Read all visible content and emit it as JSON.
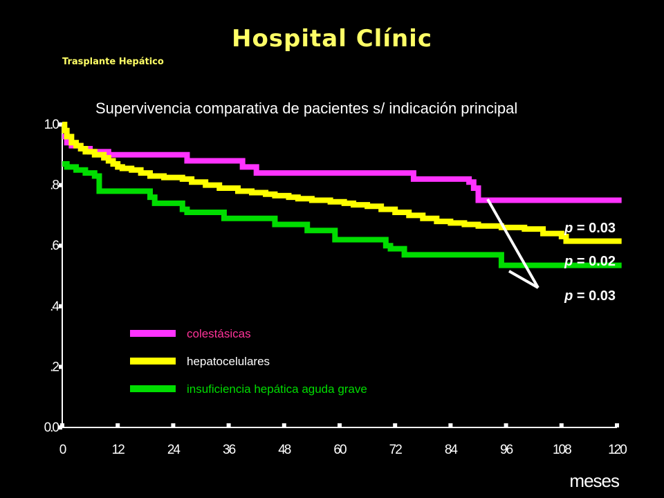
{
  "header": {
    "title": "Hospital Clínic",
    "subtitle": "Trasplante Hepático",
    "title_color": "#ffff66",
    "subtitle_color": "#ffff66"
  },
  "chart_data": {
    "type": "line",
    "title": "Supervivencia comparativa de pacientes s/ indicación principal",
    "xlabel": "meses",
    "ylabel": "",
    "xlim": [
      0,
      120
    ],
    "ylim": [
      0,
      1.0
    ],
    "x_ticks": [
      "0",
      "12",
      "24",
      "36",
      "48",
      "60",
      "72",
      "84",
      "96",
      "108",
      "120"
    ],
    "y_ticks": [
      "0.0",
      ".2",
      ".4",
      ".6",
      ".8",
      "1.0"
    ],
    "y_tick_values": [
      0,
      0.2,
      0.4,
      0.6,
      0.8,
      1.0
    ],
    "grid": false,
    "legend_position": "bottom-left inside plot",
    "series": [
      {
        "name": "colestásicas",
        "color": "#ff33ff",
        "label_color": "#ff3399",
        "steps": [
          [
            0,
            0.96
          ],
          [
            1,
            0.94
          ],
          [
            2,
            0.93
          ],
          [
            4,
            0.92
          ],
          [
            6,
            0.91
          ],
          [
            10,
            0.9
          ],
          [
            27,
            0.88
          ],
          [
            39,
            0.86
          ],
          [
            42,
            0.84
          ],
          [
            76,
            0.82
          ],
          [
            88,
            0.81
          ],
          [
            89,
            0.79
          ],
          [
            90,
            0.75
          ],
          [
            121,
            0.75
          ]
        ]
      },
      {
        "name": "hepatocelulares",
        "color": "#ffff00",
        "label_color": "#ffffff",
        "steps": [
          [
            0,
            1.0
          ],
          [
            0.5,
            0.98
          ],
          [
            1,
            0.96
          ],
          [
            2,
            0.94
          ],
          [
            3,
            0.93
          ],
          [
            4,
            0.92
          ],
          [
            5,
            0.91
          ],
          [
            7,
            0.9
          ],
          [
            9,
            0.89
          ],
          [
            10,
            0.88
          ],
          [
            11,
            0.87
          ],
          [
            12,
            0.86
          ],
          [
            13,
            0.855
          ],
          [
            15,
            0.85
          ],
          [
            17,
            0.84
          ],
          [
            19,
            0.83
          ],
          [
            22,
            0.825
          ],
          [
            26,
            0.82
          ],
          [
            28,
            0.81
          ],
          [
            31,
            0.8
          ],
          [
            34,
            0.79
          ],
          [
            38,
            0.78
          ],
          [
            41,
            0.775
          ],
          [
            44,
            0.77
          ],
          [
            46,
            0.765
          ],
          [
            49,
            0.76
          ],
          [
            51,
            0.755
          ],
          [
            54,
            0.75
          ],
          [
            58,
            0.745
          ],
          [
            61,
            0.74
          ],
          [
            63,
            0.735
          ],
          [
            66,
            0.73
          ],
          [
            69,
            0.72
          ],
          [
            72,
            0.71
          ],
          [
            75,
            0.7
          ],
          [
            78,
            0.69
          ],
          [
            81,
            0.68
          ],
          [
            84,
            0.675
          ],
          [
            87,
            0.67
          ],
          [
            90,
            0.665
          ],
          [
            95,
            0.66
          ],
          [
            100,
            0.655
          ],
          [
            104,
            0.64
          ],
          [
            108,
            0.63
          ],
          [
            109,
            0.615
          ],
          [
            121,
            0.615
          ]
        ]
      },
      {
        "name": "insuficiencia hepática aguda grave",
        "color": "#00dd00",
        "label_color": "#00dd00",
        "steps": [
          [
            0,
            0.87
          ],
          [
            1,
            0.86
          ],
          [
            3,
            0.85
          ],
          [
            5,
            0.84
          ],
          [
            7,
            0.83
          ],
          [
            8,
            0.78
          ],
          [
            19,
            0.76
          ],
          [
            20,
            0.74
          ],
          [
            26,
            0.72
          ],
          [
            27,
            0.71
          ],
          [
            35,
            0.69
          ],
          [
            46,
            0.67
          ],
          [
            53,
            0.65
          ],
          [
            59,
            0.62
          ],
          [
            70,
            0.6
          ],
          [
            71,
            0.59
          ],
          [
            74,
            0.57
          ],
          [
            95,
            0.535
          ],
          [
            121,
            0.535
          ]
        ]
      }
    ],
    "annotations": [
      {
        "prefix": "p",
        "text": " = 0.03"
      },
      {
        "prefix": "p",
        "text": " = 0.02"
      },
      {
        "prefix": "p",
        "text": " = 0.03"
      }
    ]
  }
}
